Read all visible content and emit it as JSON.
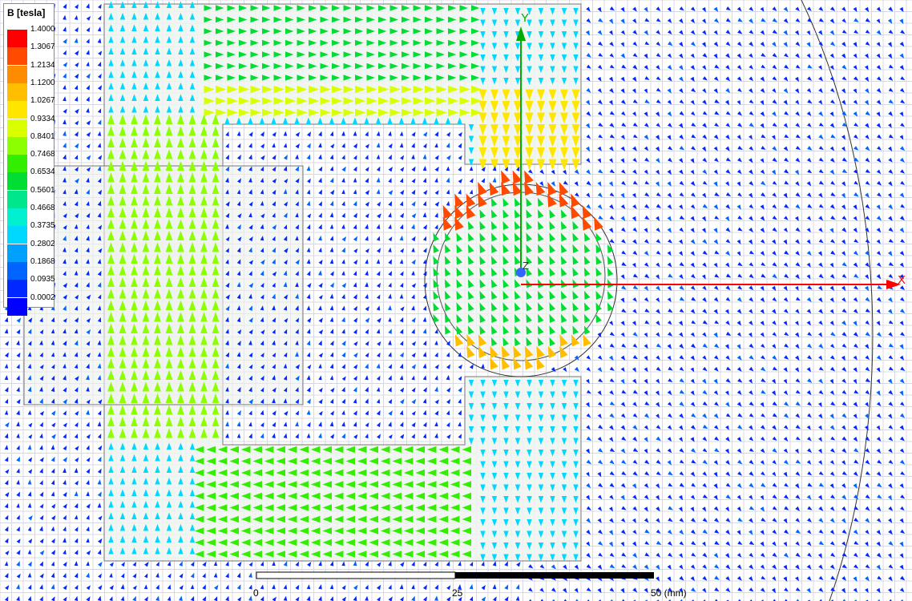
{
  "legend": {
    "title": "B [tesla]",
    "levels": [
      {
        "label": "1.4000",
        "color": "#ff0000"
      },
      {
        "label": "1.3067",
        "color": "#ff4a00"
      },
      {
        "label": "1.2134",
        "color": "#ff8c00"
      },
      {
        "label": "1.1200",
        "color": "#ffbf00"
      },
      {
        "label": "1.0267",
        "color": "#ffe600"
      },
      {
        "label": "0.9334",
        "color": "#d9ff00"
      },
      {
        "label": "0.8401",
        "color": "#8cff00"
      },
      {
        "label": "0.7468",
        "color": "#33ee00"
      },
      {
        "label": "0.6534",
        "color": "#00dd33"
      },
      {
        "label": "0.5601",
        "color": "#00e68c"
      },
      {
        "label": "0.4668",
        "color": "#00f0d0"
      },
      {
        "label": "0.3735",
        "color": "#00d8ff"
      },
      {
        "label": "0.2802",
        "color": "#00a0ff"
      },
      {
        "label": "0.1868",
        "color": "#0064ff"
      },
      {
        "label": "0.0935",
        "color": "#0028ff"
      },
      {
        "label": "0.0002",
        "color": "#0000ff"
      }
    ]
  },
  "axes": {
    "x": "X",
    "y": "Y",
    "z": "Z"
  },
  "scale_bar": {
    "labels": [
      "0",
      "25",
      "50 (mm)"
    ]
  }
}
